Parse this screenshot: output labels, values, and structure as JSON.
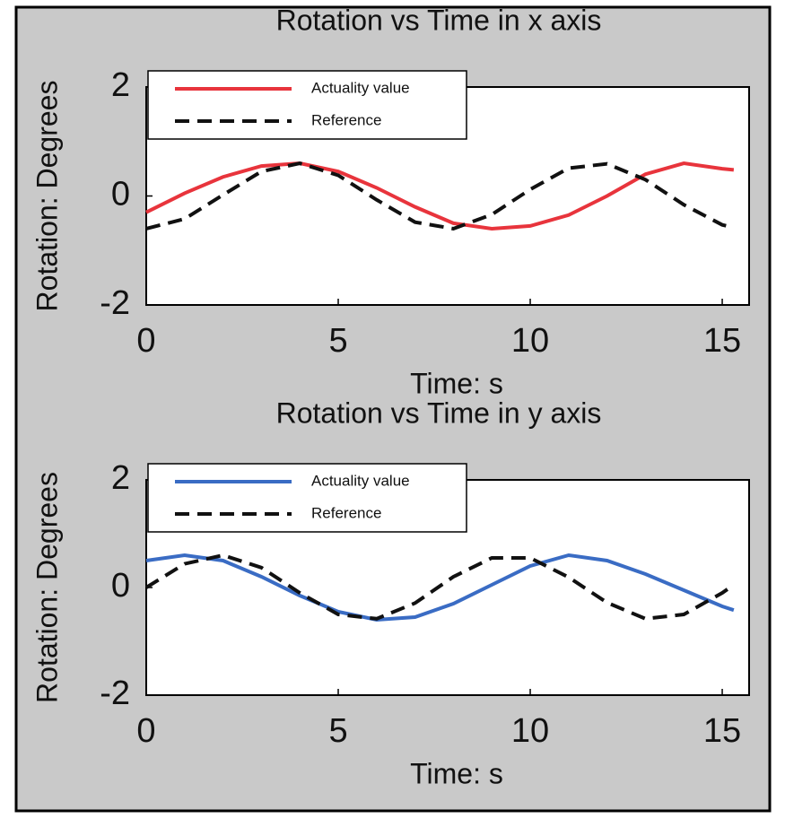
{
  "chart_data": [
    {
      "type": "line",
      "title": "Rotation vs Time in x axis",
      "xlabel": "Time: s",
      "ylabel": "Rotation: Degrees",
      "x": [
        0,
        1,
        2,
        3,
        4,
        5,
        6,
        7,
        8,
        9,
        10,
        11,
        12,
        13,
        14,
        15,
        15.3
      ],
      "series": [
        {
          "name": "Actuality value",
          "color": "#e8343c",
          "linestyle": "solid",
          "values": [
            -0.3,
            0.05,
            0.35,
            0.55,
            0.6,
            0.45,
            0.15,
            -0.2,
            -0.5,
            -0.6,
            -0.55,
            -0.35,
            0.0,
            0.4,
            0.6,
            0.5,
            0.48
          ]
        },
        {
          "name": "Reference",
          "color": "#111111",
          "linestyle": "dashed",
          "values": [
            -0.6,
            -0.42,
            0.02,
            0.45,
            0.6,
            0.38,
            -0.07,
            -0.48,
            -0.6,
            -0.34,
            0.12,
            0.51,
            0.59,
            0.3,
            -0.16,
            -0.53,
            -0.58
          ]
        }
      ],
      "xlim": [
        0,
        15.7
      ],
      "ylim": [
        -2,
        2
      ],
      "xticks": [
        0,
        5,
        10,
        15
      ],
      "yticks": [
        -2,
        0,
        2
      ],
      "legend": "upper-left"
    },
    {
      "type": "line",
      "title": "Rotation vs Time in y axis",
      "xlabel": "Time: s",
      "ylabel": "Rotation: Degrees",
      "x": [
        0,
        1,
        2,
        3,
        4,
        5,
        6,
        7,
        8,
        9,
        10,
        11,
        12,
        13,
        14,
        15,
        15.3
      ],
      "series": [
        {
          "name": "Actuality value",
          "color": "#3a6cc4",
          "linestyle": "solid",
          "values": [
            0.5,
            0.6,
            0.5,
            0.2,
            -0.15,
            -0.45,
            -0.6,
            -0.55,
            -0.3,
            0.05,
            0.4,
            0.6,
            0.5,
            0.25,
            -0.05,
            -0.35,
            -0.42
          ]
        },
        {
          "name": "Reference",
          "color": "#111111",
          "linestyle": "dashed",
          "values": [
            0,
            0.44,
            0.6,
            0.37,
            -0.1,
            -0.5,
            -0.58,
            -0.29,
            0.2,
            0.55,
            0.55,
            0.19,
            -0.28,
            -0.58,
            -0.5,
            -0.1,
            0.05
          ]
        }
      ],
      "xlim": [
        0,
        15.7
      ],
      "ylim": [
        -2,
        2
      ],
      "xticks": [
        0,
        5,
        10,
        15
      ],
      "yticks": [
        -2,
        0,
        2
      ],
      "legend": "upper-left"
    }
  ]
}
